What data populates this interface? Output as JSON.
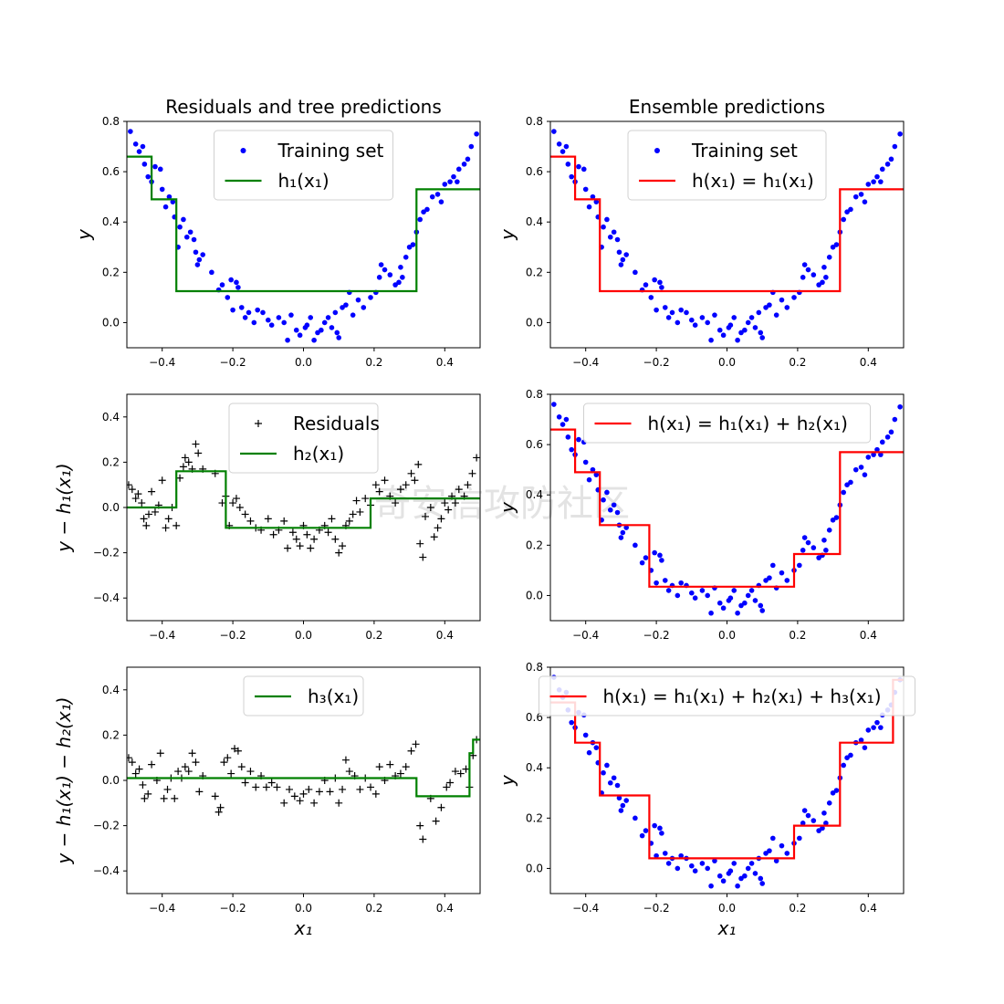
{
  "watermark": "奇安信攻防社区",
  "chart_data": [
    {
      "type": "scatter",
      "title": "Residuals and tree predictions",
      "ylabel": "y",
      "xlabel": "",
      "xlim": [
        -0.5,
        0.5
      ],
      "ylim": [
        -0.1,
        0.8
      ],
      "xticks": [
        -0.4,
        -0.2,
        0.0,
        0.2,
        0.4
      ],
      "yticks": [
        0.0,
        0.2,
        0.4,
        0.6,
        0.8
      ],
      "xtick_labels": [
        "−0.4",
        "−0.2",
        "0.0",
        "0.2",
        "0.4"
      ],
      "ytick_labels": [
        "0.0",
        "0.2",
        "0.4",
        "0.6",
        "0.8"
      ],
      "points_key": "training",
      "marker": "dot",
      "point_color": "#0000ff",
      "step": {
        "x": [
          -0.5,
          -0.43,
          -0.43,
          -0.36,
          -0.36,
          0.32,
          0.32,
          0.5
        ],
        "y": [
          0.66,
          0.66,
          0.49,
          0.49,
          0.125,
          0.125,
          0.53,
          0.53
        ],
        "color": "#008000"
      },
      "legend": [
        {
          "kind": "dot",
          "color": "#0000ff",
          "label": "Training set"
        },
        {
          "kind": "line",
          "color": "#008000",
          "label": "h₁(x₁)"
        }
      ],
      "legend_loc": "upper-center"
    },
    {
      "type": "scatter",
      "title": "Ensemble predictions",
      "ylabel": "y",
      "xlabel": "",
      "xlim": [
        -0.5,
        0.5
      ],
      "ylim": [
        -0.1,
        0.8
      ],
      "xticks": [
        -0.4,
        -0.2,
        0.0,
        0.2,
        0.4
      ],
      "yticks": [
        0.0,
        0.2,
        0.4,
        0.6,
        0.8
      ],
      "xtick_labels": [
        "−0.4",
        "−0.2",
        "0.0",
        "0.2",
        "0.4"
      ],
      "ytick_labels": [
        "0.0",
        "0.2",
        "0.4",
        "0.6",
        "0.8"
      ],
      "points_key": "training",
      "marker": "dot",
      "point_color": "#0000ff",
      "step": {
        "x": [
          -0.5,
          -0.43,
          -0.43,
          -0.36,
          -0.36,
          0.32,
          0.32,
          0.5
        ],
        "y": [
          0.66,
          0.66,
          0.49,
          0.49,
          0.125,
          0.125,
          0.53,
          0.53
        ],
        "color": "#ff0000"
      },
      "legend": [
        {
          "kind": "dot",
          "color": "#0000ff",
          "label": "Training set"
        },
        {
          "kind": "line",
          "color": "#ff0000",
          "label": "h(x₁) = h₁(x₁)"
        }
      ],
      "legend_loc": "upper-center"
    },
    {
      "type": "scatter",
      "title": "",
      "ylabel": "y − h₁(x₁)",
      "xlabel": "",
      "xlim": [
        -0.5,
        0.5
      ],
      "ylim": [
        -0.5,
        0.5
      ],
      "xticks": [
        -0.4,
        -0.2,
        0.0,
        0.2,
        0.4
      ],
      "yticks": [
        -0.4,
        -0.2,
        0.0,
        0.2,
        0.4
      ],
      "xtick_labels": [
        "−0.4",
        "−0.2",
        "0.0",
        "0.2",
        "0.4"
      ],
      "ytick_labels": [
        "−0.4",
        "−0.2",
        "0.0",
        "0.2",
        "0.4"
      ],
      "points_key": "residuals1",
      "marker": "plus",
      "point_color": "#000000",
      "step": {
        "x": [
          -0.5,
          -0.36,
          -0.36,
          -0.22,
          -0.22,
          0.19,
          0.19,
          0.5
        ],
        "y": [
          0.0,
          0.0,
          0.16,
          0.16,
          -0.09,
          -0.09,
          0.04,
          0.04
        ],
        "color": "#008000"
      },
      "legend": [
        {
          "kind": "plus",
          "color": "#000000",
          "label": "Residuals"
        },
        {
          "kind": "line",
          "color": "#008000",
          "label": "h₂(x₁)"
        }
      ],
      "legend_loc": "upper-center"
    },
    {
      "type": "scatter",
      "title": "",
      "ylabel": "y",
      "xlabel": "",
      "xlim": [
        -0.5,
        0.5
      ],
      "ylim": [
        -0.1,
        0.8
      ],
      "xticks": [
        -0.4,
        -0.2,
        0.0,
        0.2,
        0.4
      ],
      "yticks": [
        0.0,
        0.2,
        0.4,
        0.6,
        0.8
      ],
      "xtick_labels": [
        "−0.4",
        "−0.2",
        "0.0",
        "0.2",
        "0.4"
      ],
      "ytick_labels": [
        "0.0",
        "0.2",
        "0.4",
        "0.6",
        "0.8"
      ],
      "points_key": "training",
      "marker": "dot",
      "point_color": "#0000ff",
      "step": {
        "x": [
          -0.5,
          -0.43,
          -0.43,
          -0.36,
          -0.36,
          -0.22,
          -0.22,
          0.19,
          0.19,
          0.32,
          0.32,
          0.5
        ],
        "y": [
          0.66,
          0.66,
          0.49,
          0.49,
          0.28,
          0.28,
          0.035,
          0.035,
          0.165,
          0.165,
          0.57,
          0.57
        ],
        "color": "#ff0000"
      },
      "legend": [
        {
          "kind": "line",
          "color": "#ff0000",
          "label": "h(x₁) = h₁(x₁) + h₂(x₁)"
        }
      ],
      "legend_loc": "upper-center"
    },
    {
      "type": "scatter",
      "title": "",
      "ylabel": "y − h₁(x₁) − h₂(x₁)",
      "xlabel": "x₁",
      "xlim": [
        -0.5,
        0.5
      ],
      "ylim": [
        -0.5,
        0.5
      ],
      "xticks": [
        -0.4,
        -0.2,
        0.0,
        0.2,
        0.4
      ],
      "yticks": [
        -0.4,
        -0.2,
        0.0,
        0.2,
        0.4
      ],
      "xtick_labels": [
        "−0.4",
        "−0.2",
        "0.0",
        "0.2",
        "0.4"
      ],
      "ytick_labels": [
        "−0.4",
        "−0.2",
        "0.0",
        "0.2",
        "0.4"
      ],
      "points_key": "residuals2",
      "marker": "plus",
      "point_color": "#000000",
      "step": {
        "x": [
          -0.5,
          0.32,
          0.32,
          0.47,
          0.47,
          0.48,
          0.48,
          0.5
        ],
        "y": [
          0.01,
          0.01,
          -0.07,
          -0.07,
          0.12,
          0.12,
          0.18,
          0.18
        ],
        "color": "#008000"
      },
      "legend": [
        {
          "kind": "line",
          "color": "#008000",
          "label": "h₃(x₁)"
        }
      ],
      "legend_loc": "upper-center"
    },
    {
      "type": "scatter",
      "title": "",
      "ylabel": "y",
      "xlabel": "x₁",
      "xlim": [
        -0.5,
        0.5
      ],
      "ylim": [
        -0.1,
        0.8
      ],
      "xticks": [
        -0.4,
        -0.2,
        0.0,
        0.2,
        0.4
      ],
      "yticks": [
        0.0,
        0.2,
        0.4,
        0.6,
        0.8
      ],
      "xtick_labels": [
        "−0.4",
        "−0.2",
        "0.0",
        "0.2",
        "0.4"
      ],
      "ytick_labels": [
        "0.0",
        "0.2",
        "0.4",
        "0.6",
        "0.8"
      ],
      "points_key": "training",
      "marker": "dot",
      "point_color": "#0000ff",
      "step": {
        "x": [
          -0.5,
          -0.43,
          -0.43,
          -0.36,
          -0.36,
          -0.22,
          -0.22,
          0.19,
          0.19,
          0.32,
          0.32,
          0.47,
          0.47,
          0.5
        ],
        "y": [
          0.66,
          0.66,
          0.5,
          0.5,
          0.29,
          0.29,
          0.04,
          0.04,
          0.17,
          0.17,
          0.5,
          0.5,
          0.75,
          0.75
        ],
        "color": "#ff0000"
      },
      "legend": [
        {
          "kind": "line",
          "color": "#ff0000",
          "label": "h(x₁) = h₁(x₁) + h₂(x₁) + h₃(x₁)"
        }
      ],
      "legend_loc": "upper-center"
    }
  ],
  "datasets": {
    "training": [
      [
        -0.49,
        0.76
      ],
      [
        -0.475,
        0.71
      ],
      [
        -0.465,
        0.68
      ],
      [
        -0.455,
        0.7
      ],
      [
        -0.45,
        0.63
      ],
      [
        -0.44,
        0.58
      ],
      [
        -0.43,
        0.56
      ],
      [
        -0.42,
        0.62
      ],
      [
        -0.405,
        0.61
      ],
      [
        -0.4,
        0.53
      ],
      [
        -0.39,
        0.46
      ],
      [
        -0.38,
        0.5
      ],
      [
        -0.37,
        0.48
      ],
      [
        -0.365,
        0.42
      ],
      [
        -0.355,
        0.3
      ],
      [
        -0.35,
        0.38
      ],
      [
        -0.34,
        0.41
      ],
      [
        -0.33,
        0.34
      ],
      [
        -0.32,
        0.36
      ],
      [
        -0.31,
        0.33
      ],
      [
        -0.305,
        0.28
      ],
      [
        -0.3,
        0.23
      ],
      [
        -0.295,
        0.25
      ],
      [
        -0.285,
        0.27
      ],
      [
        -0.26,
        0.2
      ],
      [
        -0.24,
        0.13
      ],
      [
        -0.23,
        0.15
      ],
      [
        -0.215,
        0.1
      ],
      [
        -0.205,
        0.17
      ],
      [
        -0.2,
        0.05
      ],
      [
        -0.19,
        0.16
      ],
      [
        -0.185,
        0.14
      ],
      [
        -0.175,
        0.06
      ],
      [
        -0.165,
        0.02
      ],
      [
        -0.155,
        0.04
      ],
      [
        -0.14,
        0.0
      ],
      [
        -0.13,
        0.05
      ],
      [
        -0.115,
        0.04
      ],
      [
        -0.1,
        0.01
      ],
      [
        -0.09,
        -0.01
      ],
      [
        -0.07,
        0.02
      ],
      [
        -0.055,
        0.0
      ],
      [
        -0.045,
        -0.07
      ],
      [
        -0.035,
        0.03
      ],
      [
        -0.02,
        -0.03
      ],
      [
        -0.01,
        -0.05
      ],
      [
        0.005,
        -0.02
      ],
      [
        0.01,
        -0.01
      ],
      [
        0.02,
        0.02
      ],
      [
        0.03,
        -0.07
      ],
      [
        0.04,
        -0.04
      ],
      [
        0.05,
        -0.03
      ],
      [
        0.06,
        0.0
      ],
      [
        0.07,
        0.02
      ],
      [
        0.08,
        -0.02
      ],
      [
        0.09,
        0.04
      ],
      [
        0.095,
        -0.04
      ],
      [
        0.1,
        -0.06
      ],
      [
        0.11,
        0.06
      ],
      [
        0.12,
        0.07
      ],
      [
        0.13,
        0.12
      ],
      [
        0.14,
        0.03
      ],
      [
        0.155,
        0.09
      ],
      [
        0.17,
        0.06
      ],
      [
        0.19,
        0.1
      ],
      [
        0.205,
        0.12
      ],
      [
        0.215,
        0.18
      ],
      [
        0.22,
        0.23
      ],
      [
        0.23,
        0.21
      ],
      [
        0.245,
        0.19
      ],
      [
        0.26,
        0.15
      ],
      [
        0.27,
        0.16
      ],
      [
        0.275,
        0.22
      ],
      [
        0.28,
        0.18
      ],
      [
        0.29,
        0.26
      ],
      [
        0.3,
        0.3
      ],
      [
        0.31,
        0.31
      ],
      [
        0.32,
        0.36
      ],
      [
        0.33,
        0.41
      ],
      [
        0.34,
        0.44
      ],
      [
        0.35,
        0.45
      ],
      [
        0.365,
        0.5
      ],
      [
        0.38,
        0.51
      ],
      [
        0.39,
        0.48
      ],
      [
        0.4,
        0.55
      ],
      [
        0.415,
        0.56
      ],
      [
        0.425,
        0.58
      ],
      [
        0.435,
        0.56
      ],
      [
        0.44,
        0.61
      ],
      [
        0.455,
        0.63
      ],
      [
        0.465,
        0.65
      ],
      [
        0.475,
        0.7
      ],
      [
        0.49,
        0.75
      ]
    ],
    "residuals1": [
      [
        -0.495,
        0.1
      ],
      [
        -0.485,
        0.08
      ],
      [
        -0.475,
        0.04
      ],
      [
        -0.468,
        0.06
      ],
      [
        -0.458,
        0.02
      ],
      [
        -0.452,
        -0.05
      ],
      [
        -0.445,
        -0.08
      ],
      [
        -0.438,
        -0.03
      ],
      [
        -0.43,
        0.07
      ],
      [
        -0.42,
        -0.02
      ],
      [
        -0.41,
        0.01
      ],
      [
        -0.4,
        0.12
      ],
      [
        -0.39,
        -0.09
      ],
      [
        -0.382,
        -0.05
      ],
      [
        -0.372,
        0.0
      ],
      [
        -0.36,
        -0.08
      ],
      [
        -0.35,
        0.13
      ],
      [
        -0.34,
        0.18
      ],
      [
        -0.335,
        0.22
      ],
      [
        -0.325,
        0.2
      ],
      [
        -0.315,
        0.17
      ],
      [
        -0.305,
        0.28
      ],
      [
        -0.298,
        0.24
      ],
      [
        -0.285,
        0.17
      ],
      [
        -0.25,
        0.15
      ],
      [
        -0.23,
        0.02
      ],
      [
        -0.22,
        0.05
      ],
      [
        -0.21,
        -0.08
      ],
      [
        -0.2,
        0.02
      ],
      [
        -0.19,
        0.04
      ],
      [
        -0.18,
        0.0
      ],
      [
        -0.165,
        -0.03
      ],
      [
        -0.15,
        -0.06
      ],
      [
        -0.135,
        -0.09
      ],
      [
        -0.12,
        -0.1
      ],
      [
        -0.1,
        -0.05
      ],
      [
        -0.085,
        -0.12
      ],
      [
        -0.07,
        -0.1
      ],
      [
        -0.055,
        -0.06
      ],
      [
        -0.045,
        -0.18
      ],
      [
        -0.03,
        -0.11
      ],
      [
        -0.02,
        -0.14
      ],
      [
        -0.01,
        -0.17
      ],
      [
        0.0,
        -0.08
      ],
      [
        0.01,
        -0.12
      ],
      [
        0.02,
        -0.18
      ],
      [
        0.03,
        -0.14
      ],
      [
        0.045,
        -0.1
      ],
      [
        0.06,
        -0.08
      ],
      [
        0.07,
        -0.11
      ],
      [
        0.08,
        -0.05
      ],
      [
        0.09,
        -0.14
      ],
      [
        0.1,
        -0.2
      ],
      [
        0.11,
        -0.17
      ],
      [
        0.12,
        -0.08
      ],
      [
        0.13,
        -0.06
      ],
      [
        0.14,
        -0.03
      ],
      [
        0.15,
        0.03
      ],
      [
        0.16,
        -0.02
      ],
      [
        0.175,
        0.04
      ],
      [
        0.19,
        0.01
      ],
      [
        0.205,
        0.1
      ],
      [
        0.215,
        0.07
      ],
      [
        0.23,
        0.12
      ],
      [
        0.245,
        0.05
      ],
      [
        0.26,
        0.02
      ],
      [
        0.275,
        0.08
      ],
      [
        0.29,
        0.1
      ],
      [
        0.305,
        0.15
      ],
      [
        0.315,
        0.12
      ],
      [
        0.325,
        0.19
      ],
      [
        0.33,
        -0.16
      ],
      [
        0.338,
        -0.22
      ],
      [
        0.345,
        -0.04
      ],
      [
        0.36,
        0.0
      ],
      [
        0.37,
        -0.13
      ],
      [
        0.38,
        -0.09
      ],
      [
        0.39,
        -0.05
      ],
      [
        0.4,
        0.02
      ],
      [
        0.41,
        -0.01
      ],
      [
        0.42,
        0.05
      ],
      [
        0.43,
        0.02
      ],
      [
        0.44,
        0.08
      ],
      [
        0.455,
        0.05
      ],
      [
        0.465,
        0.1
      ],
      [
        0.478,
        0.15
      ],
      [
        0.49,
        0.22
      ]
    ],
    "residuals2": [
      [
        -0.495,
        0.1
      ],
      [
        -0.485,
        0.08
      ],
      [
        -0.475,
        0.03
      ],
      [
        -0.465,
        0.05
      ],
      [
        -0.455,
        -0.02
      ],
      [
        -0.45,
        -0.08
      ],
      [
        -0.44,
        -0.06
      ],
      [
        -0.43,
        0.07
      ],
      [
        -0.415,
        0.0
      ],
      [
        -0.405,
        0.12
      ],
      [
        -0.395,
        -0.08
      ],
      [
        -0.385,
        -0.04
      ],
      [
        -0.375,
        0.01
      ],
      [
        -0.365,
        -0.08
      ],
      [
        -0.355,
        0.04
      ],
      [
        -0.345,
        0.01
      ],
      [
        -0.335,
        0.06
      ],
      [
        -0.325,
        0.04
      ],
      [
        -0.315,
        0.12
      ],
      [
        -0.305,
        0.08
      ],
      [
        -0.295,
        -0.05
      ],
      [
        -0.285,
        0.02
      ],
      [
        -0.25,
        -0.07
      ],
      [
        -0.24,
        -0.14
      ],
      [
        -0.235,
        -0.12
      ],
      [
        -0.225,
        0.08
      ],
      [
        -0.215,
        0.1
      ],
      [
        -0.205,
        0.03
      ],
      [
        -0.195,
        0.14
      ],
      [
        -0.185,
        0.13
      ],
      [
        -0.175,
        0.06
      ],
      [
        -0.165,
        -0.01
      ],
      [
        -0.15,
        0.04
      ],
      [
        -0.135,
        -0.03
      ],
      [
        -0.12,
        0.02
      ],
      [
        -0.105,
        -0.03
      ],
      [
        -0.09,
        -0.01
      ],
      [
        -0.075,
        -0.03
      ],
      [
        -0.055,
        -0.1
      ],
      [
        -0.04,
        -0.04
      ],
      [
        -0.025,
        -0.07
      ],
      [
        -0.01,
        -0.09
      ],
      [
        0.0,
        -0.06
      ],
      [
        0.015,
        -0.04
      ],
      [
        0.03,
        -0.1
      ],
      [
        0.045,
        -0.05
      ],
      [
        0.06,
        0.0
      ],
      [
        0.075,
        -0.05
      ],
      [
        0.09,
        0.01
      ],
      [
        0.1,
        -0.1
      ],
      [
        0.11,
        -0.04
      ],
      [
        0.12,
        0.09
      ],
      [
        0.13,
        0.04
      ],
      [
        0.145,
        0.02
      ],
      [
        0.16,
        -0.04
      ],
      [
        0.175,
        0.01
      ],
      [
        0.19,
        -0.03
      ],
      [
        0.205,
        -0.06
      ],
      [
        0.215,
        0.06
      ],
      [
        0.23,
        0.0
      ],
      [
        0.245,
        0.07
      ],
      [
        0.26,
        0.02
      ],
      [
        0.275,
        0.03
      ],
      [
        0.29,
        0.06
      ],
      [
        0.305,
        0.13
      ],
      [
        0.318,
        0.16
      ],
      [
        0.33,
        -0.2
      ],
      [
        0.338,
        -0.26
      ],
      [
        0.36,
        -0.08
      ],
      [
        0.375,
        -0.18
      ],
      [
        0.39,
        -0.12
      ],
      [
        0.405,
        -0.03
      ],
      [
        0.415,
        -0.01
      ],
      [
        0.43,
        0.04
      ],
      [
        0.445,
        0.03
      ],
      [
        0.46,
        0.05
      ],
      [
        0.47,
        -0.03
      ],
      [
        0.48,
        0.11
      ],
      [
        0.49,
        0.18
      ]
    ]
  }
}
